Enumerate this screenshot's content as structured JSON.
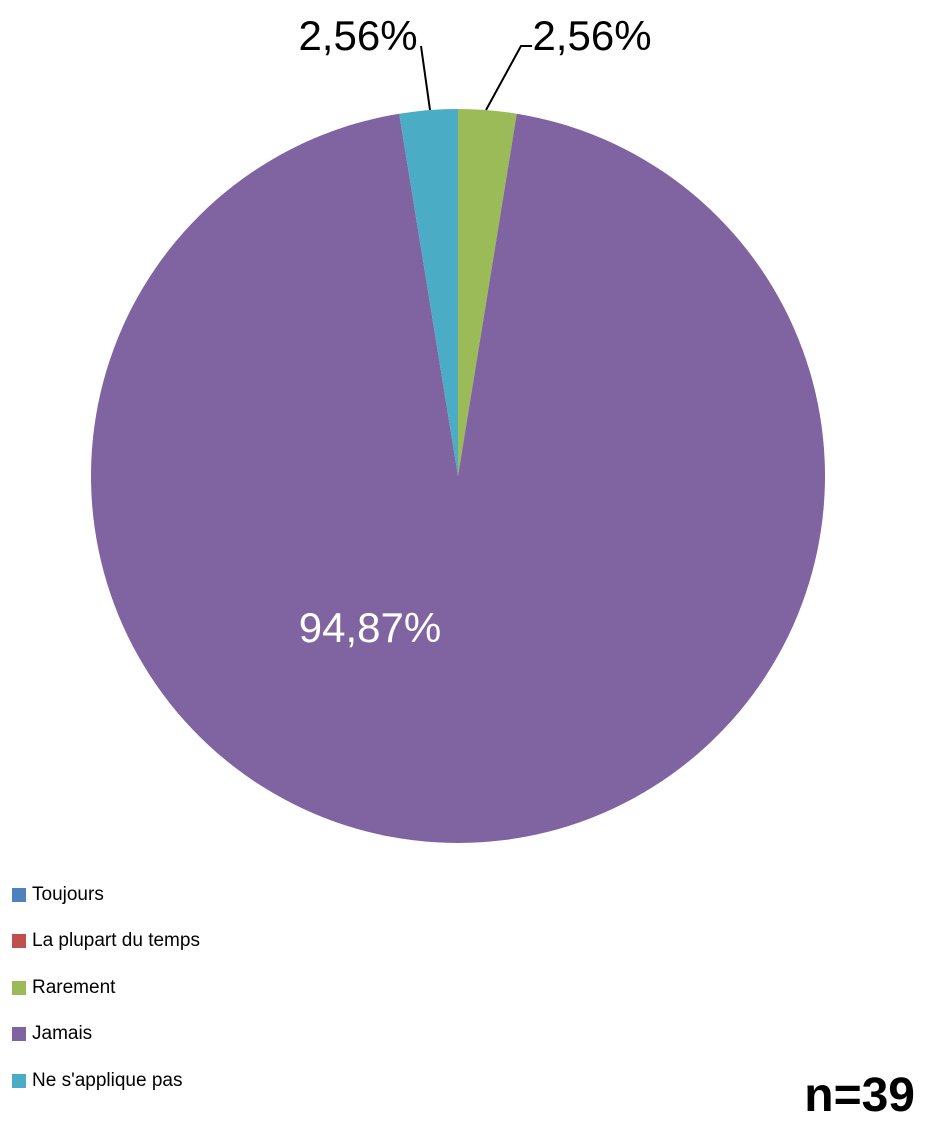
{
  "chart_data": {
    "type": "pie",
    "categories": [
      "Toujours",
      "La plupart du temps",
      "Rarement",
      "Jamais",
      "Ne s'applique pas"
    ],
    "values": [
      0,
      0,
      2.56,
      94.87,
      2.56
    ],
    "value_labels": [
      "",
      "",
      "2,56%",
      "94,87%",
      "2,56%"
    ],
    "colors": [
      "#4F81BD",
      "#C0504D",
      "#9BBB59",
      "#8064A2",
      "#4BACC6"
    ],
    "start_angle": "12 o'clock",
    "direction": "clockwise",
    "legend_position": "bottom-left"
  },
  "annotation": {
    "sample_size": "n=39"
  }
}
